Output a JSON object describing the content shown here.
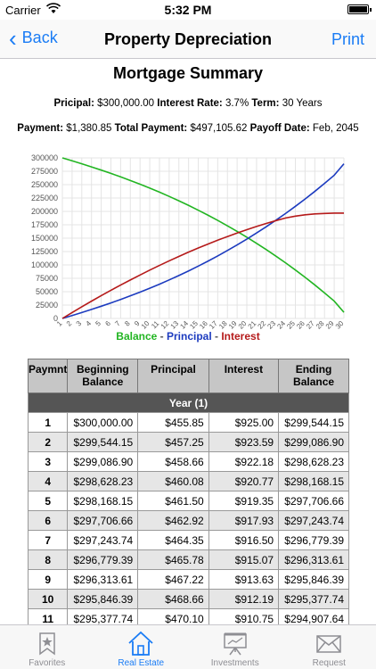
{
  "status": {
    "carrier": "Carrier",
    "time": "5:32 PM"
  },
  "nav": {
    "back": "Back",
    "title": "Property Depreciation",
    "print": "Print"
  },
  "summary": {
    "title": "Mortgage Summary",
    "principal_label": "Pricipal:",
    "principal": "$300,000.00",
    "rate_label": "Interest Rate:",
    "rate": "3.7%",
    "term_label": "Term:",
    "term": "30 Years",
    "payment_label": "Payment:",
    "payment": "$1,380.85",
    "total_label": "Total Payment:",
    "total": "$497,105.62",
    "payoff_label": "Payoff Date:",
    "payoff": "Feb, 2045"
  },
  "chart_data": {
    "type": "line",
    "x": [
      1,
      2,
      3,
      4,
      5,
      6,
      7,
      8,
      9,
      10,
      11,
      12,
      13,
      14,
      15,
      16,
      17,
      18,
      19,
      20,
      21,
      22,
      23,
      24,
      25,
      26,
      27,
      28,
      29,
      30
    ],
    "ylim": [
      0,
      300000
    ],
    "yticks": [
      0,
      25000,
      50000,
      75000,
      100000,
      125000,
      150000,
      175000,
      200000,
      225000,
      250000,
      275000,
      300000
    ],
    "grid": true,
    "legend_position": "bottom",
    "series": [
      {
        "name": "Balance",
        "color": "#22b522",
        "values": [
          300000,
          294600,
          289000,
          283200,
          277200,
          271000,
          264500,
          257800,
          250800,
          243500,
          236000,
          228000,
          219800,
          211200,
          202200,
          192900,
          183200,
          173100,
          162600,
          151700,
          140400,
          128600,
          116400,
          103700,
          90500,
          76800,
          62600,
          47800,
          32400,
          11500
        ]
      },
      {
        "name": "Principal",
        "color": "#1c3bbf",
        "values": [
          0,
          5400,
          11000,
          16800,
          22800,
          29000,
          35500,
          42200,
          49200,
          56500,
          64000,
          72000,
          80200,
          88800,
          97800,
          107100,
          116800,
          126900,
          137400,
          148300,
          159600,
          171400,
          183600,
          196300,
          209500,
          223200,
          237400,
          252200,
          267600,
          289000
        ]
      },
      {
        "name": "Interest",
        "color": "#b51a1a",
        "values": [
          0,
          11000,
          21800,
          32300,
          42600,
          52600,
          62400,
          71900,
          81200,
          90300,
          99100,
          107600,
          115800,
          123900,
          131600,
          139000,
          146200,
          153000,
          159600,
          165900,
          171900,
          177500,
          182800,
          187700,
          191100,
          193700,
          195300,
          196200,
          196700,
          196800
        ]
      }
    ],
    "legend_separators": [
      " - ",
      " - "
    ]
  },
  "table": {
    "headers": [
      "Paymnt",
      "Beginning Balance",
      "Principal",
      "Interest",
      "Ending Balance"
    ],
    "group": "Year (1)",
    "rows": [
      [
        "1",
        "$300,000.00",
        "$455.85",
        "$925.00",
        "$299,544.15"
      ],
      [
        "2",
        "$299,544.15",
        "$457.25",
        "$923.59",
        "$299,086.90"
      ],
      [
        "3",
        "$299,086.90",
        "$458.66",
        "$922.18",
        "$298,628.23"
      ],
      [
        "4",
        "$298,628.23",
        "$460.08",
        "$920.77",
        "$298,168.15"
      ],
      [
        "5",
        "$298,168.15",
        "$461.50",
        "$919.35",
        "$297,706.66"
      ],
      [
        "6",
        "$297,706.66",
        "$462.92",
        "$917.93",
        "$297,243.74"
      ],
      [
        "7",
        "$297,243.74",
        "$464.35",
        "$916.50",
        "$296,779.39"
      ],
      [
        "8",
        "$296,779.39",
        "$465.78",
        "$915.07",
        "$296,313.61"
      ],
      [
        "9",
        "$296,313.61",
        "$467.22",
        "$913.63",
        "$295,846.39"
      ],
      [
        "10",
        "$295,846.39",
        "$468.66",
        "$912.19",
        "$295,377.74"
      ],
      [
        "11",
        "$295,377.74",
        "$470.10",
        "$910.75",
        "$294,907.64"
      ]
    ]
  },
  "tabs": [
    {
      "label": "Favorites",
      "icon": "bookmark-star-icon"
    },
    {
      "label": "Real Estate",
      "icon": "house-icon"
    },
    {
      "label": "Investments",
      "icon": "easel-chart-icon"
    },
    {
      "label": "Request",
      "icon": "envelope-icon"
    }
  ]
}
